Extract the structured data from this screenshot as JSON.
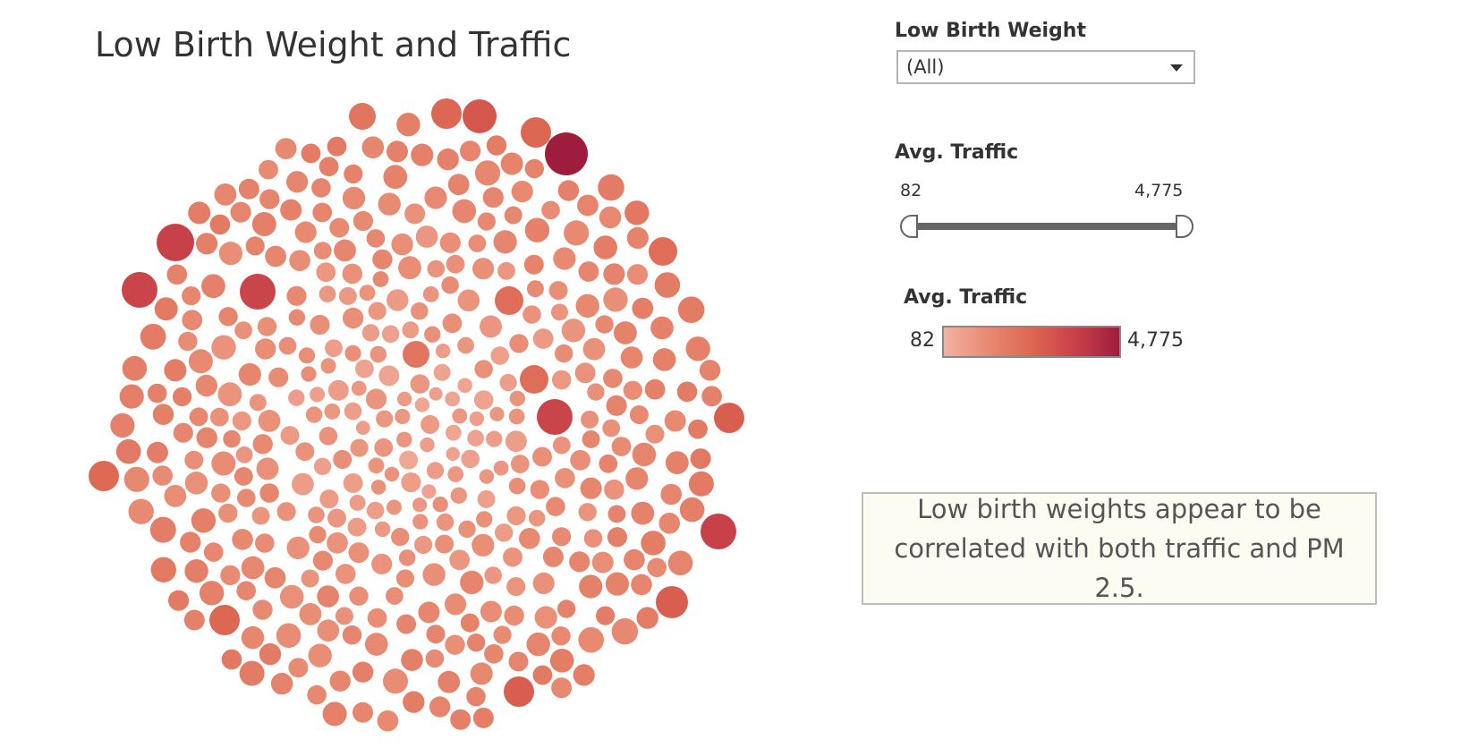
{
  "title": "Low Birth Weight and Traffic",
  "filter": {
    "label": "Low Birth Weight",
    "value": "(All)",
    "icon": "chevron-down-icon"
  },
  "slider": {
    "label": "Avg. Traffic",
    "min_label": "82",
    "max_label": "4,775",
    "min": 82,
    "max": 4775,
    "selected_low": 82,
    "selected_high": 4775
  },
  "legend": {
    "label": "Avg. Traffic",
    "min_label": "82",
    "max_label": "4,775",
    "colors": [
      "#f2b3a3",
      "#e88a72",
      "#dc6752",
      "#c84048",
      "#9e1d3e"
    ]
  },
  "note": "Low birth weights appear to be correlated with both traffic and PM 2.5.",
  "chart_data": {
    "type": "packed-bubble",
    "encoding": {
      "size": "Avg. Traffic",
      "color": "Avg. Traffic"
    },
    "color_range": [
      82,
      4775
    ]
  }
}
